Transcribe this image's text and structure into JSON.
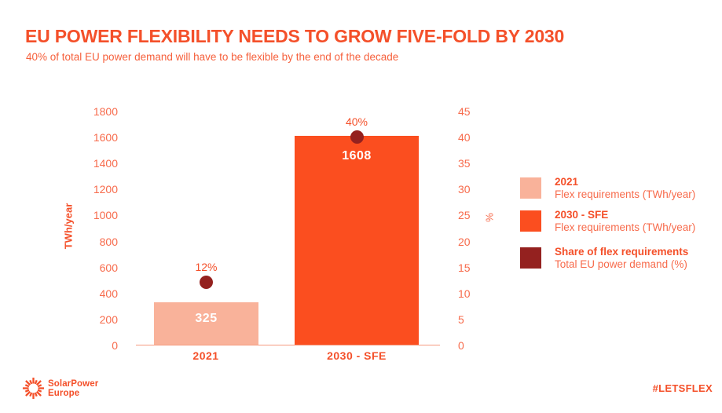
{
  "header": {
    "title": "EU POWER FLEXIBILITY NEEDS TO GROW FIVE-FOLD BY 2030",
    "subtitle": "40% of total EU power demand will have to be flexible by the end of the decade"
  },
  "colors": {
    "accent": "#F4502A",
    "bar_2021": "#F9B29A",
    "bar_2030": "#FB4E1F",
    "share_dot": "#94211F",
    "axis_line": "#F59B80",
    "background": "#FFFFFF"
  },
  "chart_data": {
    "type": "bar",
    "categories": [
      "2021",
      "2030 - SFE"
    ],
    "series": [
      {
        "name": "Flex requirements (TWh/year)",
        "type": "bar",
        "axis": "left",
        "values": [
          325,
          1608
        ],
        "data_labels": [
          "325",
          "1608"
        ],
        "colors": [
          "#F9B29A",
          "#FB4E1F"
        ]
      },
      {
        "name": "Share of flex requirements - Total EU power demand (%)",
        "type": "point",
        "axis": "right",
        "values": [
          12,
          40
        ],
        "data_labels": [
          "12%",
          "40%"
        ],
        "color": "#94211F"
      }
    ],
    "left_axis": {
      "label": "TWh/year",
      "range": [
        0,
        1800
      ],
      "ticks": [
        "1800",
        "1600",
        "1400",
        "1200",
        "1000",
        "800",
        "600",
        "400",
        "200",
        "0"
      ]
    },
    "right_axis": {
      "label": "%",
      "range": [
        0,
        45
      ],
      "ticks": [
        "45",
        "40",
        "35",
        "30",
        "25",
        "20",
        "15",
        "10",
        "5",
        "0"
      ]
    },
    "grid": false,
    "legend_position": "right"
  },
  "legend": {
    "items": [
      {
        "swatch": "#F9B29A",
        "title": "2021",
        "subtitle": "Flex requirements (TWh/year)"
      },
      {
        "swatch": "#FB4E1F",
        "title": "2030 - SFE",
        "subtitle": "Flex requirements (TWh/year)"
      },
      {
        "swatch": "#94211F",
        "title": "Share of flex requirements",
        "subtitle": "Total EU power demand (%)"
      }
    ]
  },
  "footer": {
    "logo_line1": "SolarPower",
    "logo_line2": "Europe",
    "logo_icon": "sun-icon",
    "hashtag": "#LETSFLEX"
  }
}
